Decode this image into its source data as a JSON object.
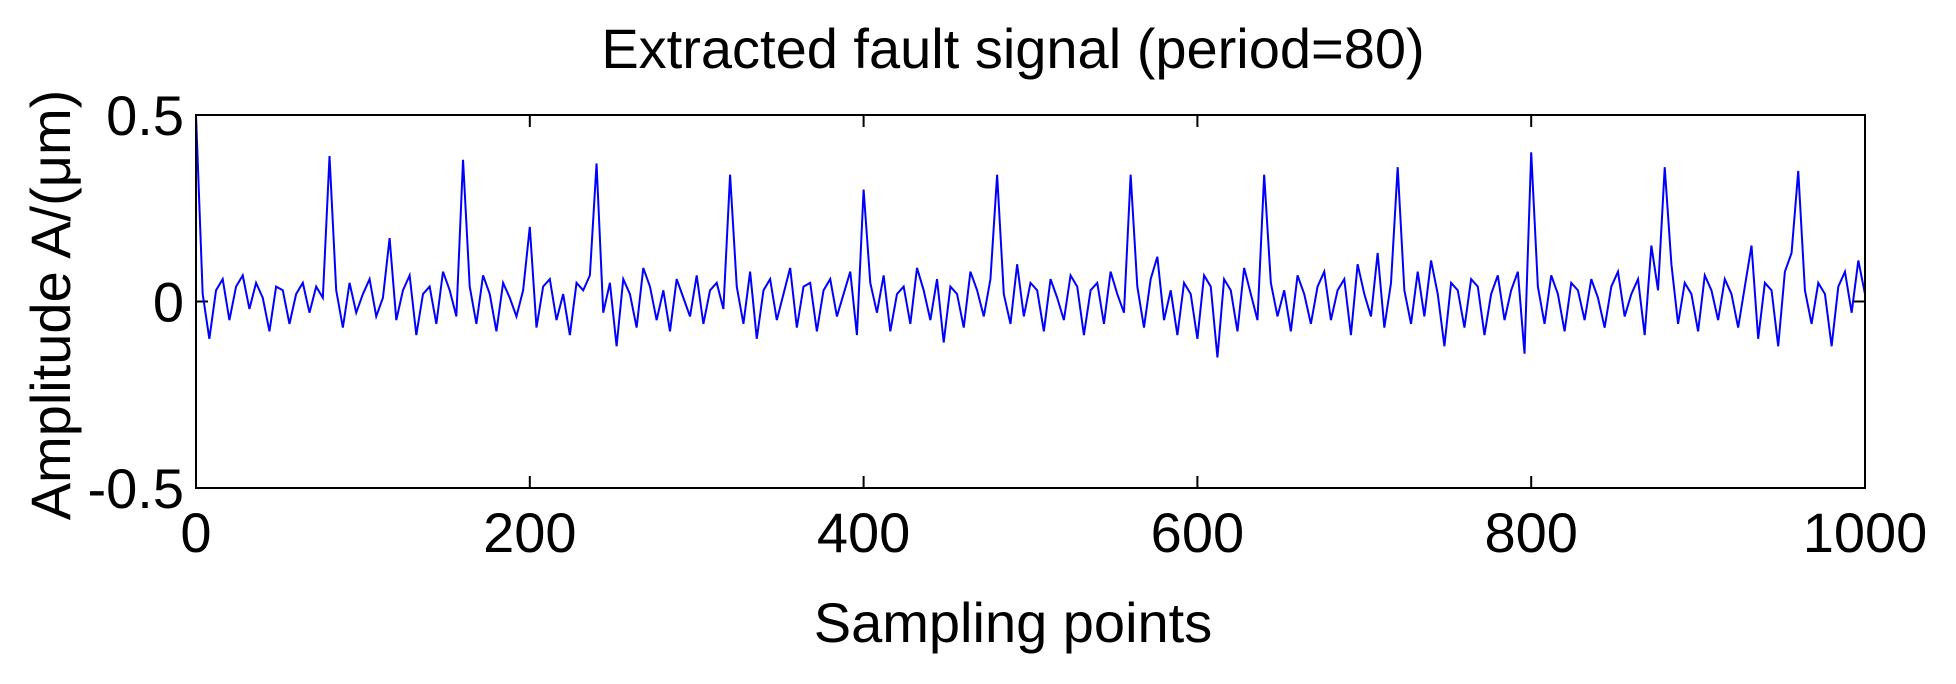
{
  "chart_data": {
    "type": "line",
    "title": "Extracted fault signal (period=80)",
    "xlabel": "Sampling points",
    "ylabel": "Amplitude A/(μm)",
    "xlim": [
      0,
      1000
    ],
    "xticks": [
      0,
      200,
      400,
      600,
      800,
      1000
    ],
    "ylim": [
      -0.5,
      0.5
    ],
    "yticks": [
      -0.5,
      0,
      0.5
    ],
    "x": [
      0,
      4,
      8,
      12,
      16,
      20,
      24,
      28,
      32,
      36,
      40,
      44,
      48,
      52,
      56,
      60,
      64,
      68,
      72,
      76,
      80,
      84,
      88,
      92,
      96,
      100,
      104,
      108,
      112,
      116,
      120,
      124,
      128,
      132,
      136,
      140,
      144,
      148,
      152,
      156,
      160,
      164,
      168,
      172,
      176,
      180,
      184,
      188,
      192,
      196,
      200,
      204,
      208,
      212,
      216,
      220,
      224,
      228,
      232,
      236,
      240,
      244,
      248,
      252,
      256,
      260,
      264,
      268,
      272,
      276,
      280,
      284,
      288,
      292,
      296,
      300,
      304,
      308,
      312,
      316,
      320,
      324,
      328,
      332,
      336,
      340,
      344,
      348,
      352,
      356,
      360,
      364,
      368,
      372,
      376,
      380,
      384,
      388,
      392,
      396,
      400,
      404,
      408,
      412,
      416,
      420,
      424,
      428,
      432,
      436,
      440,
      444,
      448,
      452,
      456,
      460,
      464,
      468,
      472,
      476,
      480,
      484,
      488,
      492,
      496,
      500,
      504,
      508,
      512,
      516,
      520,
      524,
      528,
      532,
      536,
      540,
      544,
      548,
      552,
      556,
      560,
      564,
      568,
      572,
      576,
      580,
      584,
      588,
      592,
      596,
      600,
      604,
      608,
      612,
      616,
      620,
      624,
      628,
      632,
      636,
      640,
      644,
      648,
      652,
      656,
      660,
      664,
      668,
      672,
      676,
      680,
      684,
      688,
      692,
      696,
      700,
      704,
      708,
      712,
      716,
      720,
      724,
      728,
      732,
      736,
      740,
      744,
      748,
      752,
      756,
      760,
      764,
      768,
      772,
      776,
      780,
      784,
      788,
      792,
      796,
      800,
      804,
      808,
      812,
      816,
      820,
      824,
      828,
      832,
      836,
      840,
      844,
      848,
      852,
      856,
      860,
      864,
      868,
      872,
      876,
      880,
      884,
      888,
      892,
      896,
      900,
      904,
      908,
      912,
      916,
      920,
      924,
      928,
      932,
      936,
      940,
      944,
      948,
      952,
      956,
      960,
      964,
      968,
      972,
      976,
      980,
      984,
      988,
      992,
      996,
      1000
    ],
    "series": [
      {
        "color": "#0000ff",
        "values": [
          0.5,
          0.02,
          -0.1,
          0.03,
          0.06,
          -0.05,
          0.04,
          0.07,
          -0.02,
          0.05,
          0.01,
          -0.08,
          0.04,
          0.03,
          -0.06,
          0.02,
          0.05,
          -0.03,
          0.04,
          0.01,
          0.39,
          0.03,
          -0.07,
          0.05,
          -0.03,
          0.02,
          0.06,
          -0.04,
          0.01,
          0.17,
          -0.05,
          0.03,
          0.07,
          -0.09,
          0.02,
          0.04,
          -0.06,
          0.08,
          0.03,
          -0.04,
          0.38,
          0.04,
          -0.06,
          0.07,
          0.02,
          -0.08,
          0.05,
          0.01,
          -0.04,
          0.03,
          0.2,
          -0.07,
          0.04,
          0.06,
          -0.05,
          0.02,
          -0.09,
          0.05,
          0.03,
          0.07,
          0.37,
          -0.03,
          0.05,
          -0.12,
          0.06,
          0.02,
          -0.07,
          0.09,
          0.04,
          -0.05,
          0.03,
          -0.08,
          0.06,
          0.01,
          -0.04,
          0.07,
          -0.06,
          0.03,
          0.05,
          -0.02,
          0.34,
          0.04,
          -0.06,
          0.08,
          -0.1,
          0.03,
          0.06,
          -0.05,
          0.02,
          0.09,
          -0.07,
          0.04,
          0.05,
          -0.08,
          0.03,
          0.06,
          -0.04,
          0.02,
          0.08,
          -0.09,
          0.3,
          0.05,
          -0.03,
          0.07,
          -0.08,
          0.02,
          0.04,
          -0.06,
          0.09,
          0.03,
          -0.05,
          0.06,
          -0.11,
          0.04,
          0.02,
          -0.07,
          0.08,
          0.03,
          -0.04,
          0.06,
          0.34,
          0.02,
          -0.06,
          0.1,
          -0.04,
          0.05,
          0.03,
          -0.08,
          0.06,
          0.01,
          -0.05,
          0.07,
          0.04,
          -0.09,
          0.03,
          0.05,
          -0.06,
          0.08,
          0.02,
          -0.03,
          0.34,
          0.04,
          -0.07,
          0.06,
          0.12,
          -0.05,
          0.03,
          -0.09,
          0.05,
          0.02,
          -0.1,
          0.07,
          0.04,
          -0.15,
          0.06,
          0.03,
          -0.08,
          0.09,
          0.02,
          -0.05,
          0.34,
          0.05,
          -0.04,
          0.03,
          -0.08,
          0.07,
          0.02,
          -0.06,
          0.04,
          0.08,
          -0.05,
          0.03,
          0.06,
          -0.09,
          0.1,
          0.02,
          -0.04,
          0.13,
          -0.07,
          0.05,
          0.36,
          0.03,
          -0.06,
          0.08,
          -0.04,
          0.11,
          0.02,
          -0.12,
          0.05,
          0.03,
          -0.07,
          0.06,
          0.04,
          -0.09,
          0.02,
          0.07,
          -0.05,
          0.03,
          0.08,
          -0.14,
          0.4,
          0.04,
          -0.06,
          0.07,
          0.02,
          -0.08,
          0.05,
          0.03,
          -0.05,
          0.06,
          0.01,
          -0.07,
          0.04,
          0.08,
          -0.04,
          0.02,
          0.06,
          -0.09,
          0.15,
          0.03,
          0.36,
          0.1,
          -0.06,
          0.05,
          0.02,
          -0.08,
          0.07,
          0.03,
          -0.05,
          0.06,
          0.02,
          -0.07,
          0.04,
          0.15,
          -0.1,
          0.05,
          0.03,
          -0.12,
          0.08,
          0.13,
          0.35,
          0.03,
          -0.06,
          0.05,
          0.02,
          -0.12,
          0.04,
          0.08,
          -0.03,
          0.11,
          0.02
        ]
      }
    ]
  }
}
